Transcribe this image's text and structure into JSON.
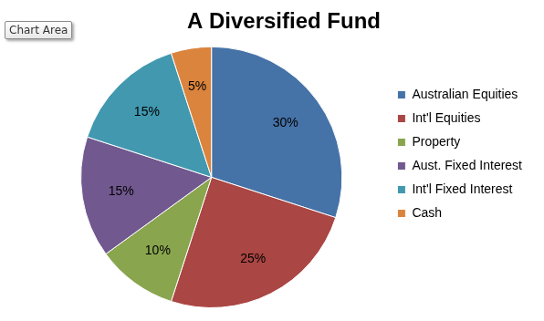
{
  "chart_data": {
    "type": "pie",
    "title": "A Diversified Fund",
    "categories": [
      "Australian Equities",
      "Int'l Equities",
      "Property",
      "Aust. Fixed Interest",
      "Int'l Fixed Interest",
      "Cash"
    ],
    "values": [
      30,
      25,
      10,
      15,
      15,
      5
    ],
    "value_labels": [
      "30%",
      "25%",
      "10%",
      "15%",
      "15%",
      "5%"
    ],
    "colors": [
      "#4572a7",
      "#aa4643",
      "#89a54e",
      "#71588f",
      "#4198af",
      "#db843d"
    ],
    "data_labels": true,
    "legend": "right",
    "annotations": [
      "Chart Area"
    ]
  }
}
